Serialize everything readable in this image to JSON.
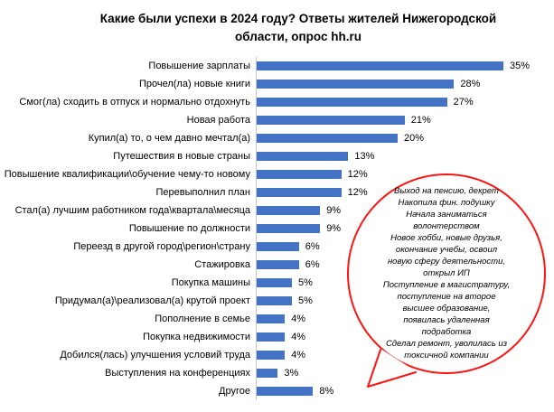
{
  "chart_data": {
    "type": "bar",
    "orientation": "horizontal",
    "title": "Какие были успехи в 2024 году? Ответы жителей Нижегородской области, опрос hh.ru",
    "title_lines": [
      "Какие были успехи в 2024 году? Ответы жителей Нижегородской",
      "области, опрос hh.ru"
    ],
    "categories": [
      "Повышение зарплаты",
      "Прочел(ла) новые книги",
      "Смог(ла) сходить в отпуск и нормально отдохнуть",
      "Новая работа",
      "Купил(а) то, о чем давно мечтал(а)",
      "Путешествия в новые страны",
      "Повышение квалификации\\обучение чему-то новому",
      "Перевыполнил план",
      "Стал(а) лучшим работником года\\квартала\\месяца",
      "Повышение по должности",
      "Переезд в другой город\\регион\\страну",
      "Стажировка",
      "Покупка машины",
      "Придумал(а)\\реализовал(а) крутой проект",
      "Пополнение в семье",
      "Покупка недвижимости",
      "Добился(лась) улучшения условий труда",
      "Выступления на конференциях",
      "Другое"
    ],
    "values": [
      35,
      28,
      27,
      21,
      20,
      13,
      12,
      12,
      9,
      9,
      6,
      6,
      5,
      5,
      4,
      4,
      4,
      3,
      8
    ],
    "value_suffix": "%",
    "xlim": [
      0,
      35
    ],
    "grid": false,
    "data_labels": true
  },
  "callout": {
    "lines": [
      "Выход на пенсию, декрет",
      "Накопила фин. подушку",
      "Начала заниматься",
      "волонтерством",
      "Новое хобби, новые друзья,",
      "окончание учебы, освоил",
      "новую сферу деятельности,",
      "открыл ИП",
      "Поступление в магистратуру,",
      "поступление на второе",
      "высшее образование,",
      "появилась удаленная",
      "подработка",
      "Сделал ремонт, уволилась из",
      "токсичной компании"
    ]
  },
  "colors": {
    "bar": "#4472C4",
    "callout_outline": "#FF1414",
    "axis_line": "#C8C8C8",
    "text": "#000000"
  }
}
